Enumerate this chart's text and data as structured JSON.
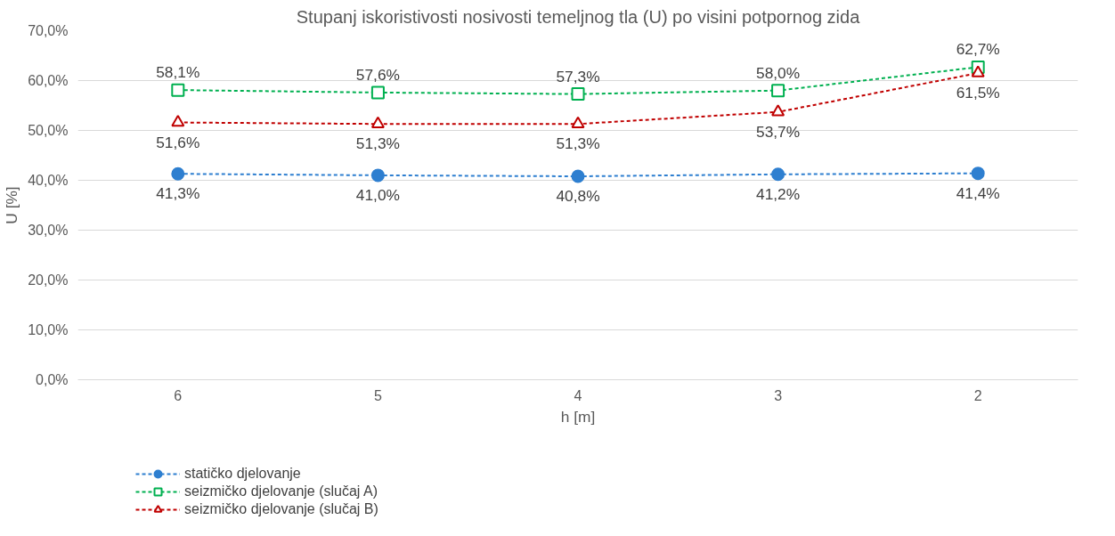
{
  "chart_data": {
    "type": "line",
    "title": "Stupanj iskoristivosti nosivosti temeljnog tla (U) po visini potpornog zida",
    "xlabel": "h [m]",
    "ylabel": "U [%]",
    "categories": [
      "6",
      "5",
      "4",
      "3",
      "2"
    ],
    "series": [
      {
        "name": "statičko djelovanje",
        "color": "#2e7fd0",
        "marker": "circle",
        "values": [
          41.3,
          41.0,
          40.8,
          41.2,
          41.4
        ],
        "value_labels": [
          "41,3%",
          "41,0%",
          "40,8%",
          "41,2%",
          "41,4%"
        ]
      },
      {
        "name": "seizmičko djelovanje (slučaj A)",
        "color": "#00b050",
        "marker": "square",
        "values": [
          58.1,
          57.6,
          57.3,
          58.0,
          62.7
        ],
        "value_labels": [
          "58,1%",
          "57,6%",
          "57,3%",
          "58,0%",
          "62,7%"
        ]
      },
      {
        "name": "seizmičko djelovanje (slučaj B)",
        "color": "#c00000",
        "marker": "triangle",
        "values": [
          51.6,
          51.3,
          51.3,
          53.7,
          61.5
        ],
        "value_labels": [
          "51,6%",
          "51,3%",
          "51,3%",
          "53,7%",
          "61,5%"
        ]
      }
    ],
    "ylim": [
      0,
      70
    ],
    "yticks": [
      {
        "value": 0,
        "label": "0,0%"
      },
      {
        "value": 10,
        "label": "10,0%"
      },
      {
        "value": 20,
        "label": "20,0%"
      },
      {
        "value": 30,
        "label": "30,0%"
      },
      {
        "value": 40,
        "label": "40,0%"
      },
      {
        "value": 50,
        "label": "50,0%"
      },
      {
        "value": 60,
        "label": "60,0%"
      },
      {
        "value": 70,
        "label": "70,0%"
      }
    ],
    "grid": "y",
    "legend": "bottom left",
    "line_style": "dashed"
  }
}
